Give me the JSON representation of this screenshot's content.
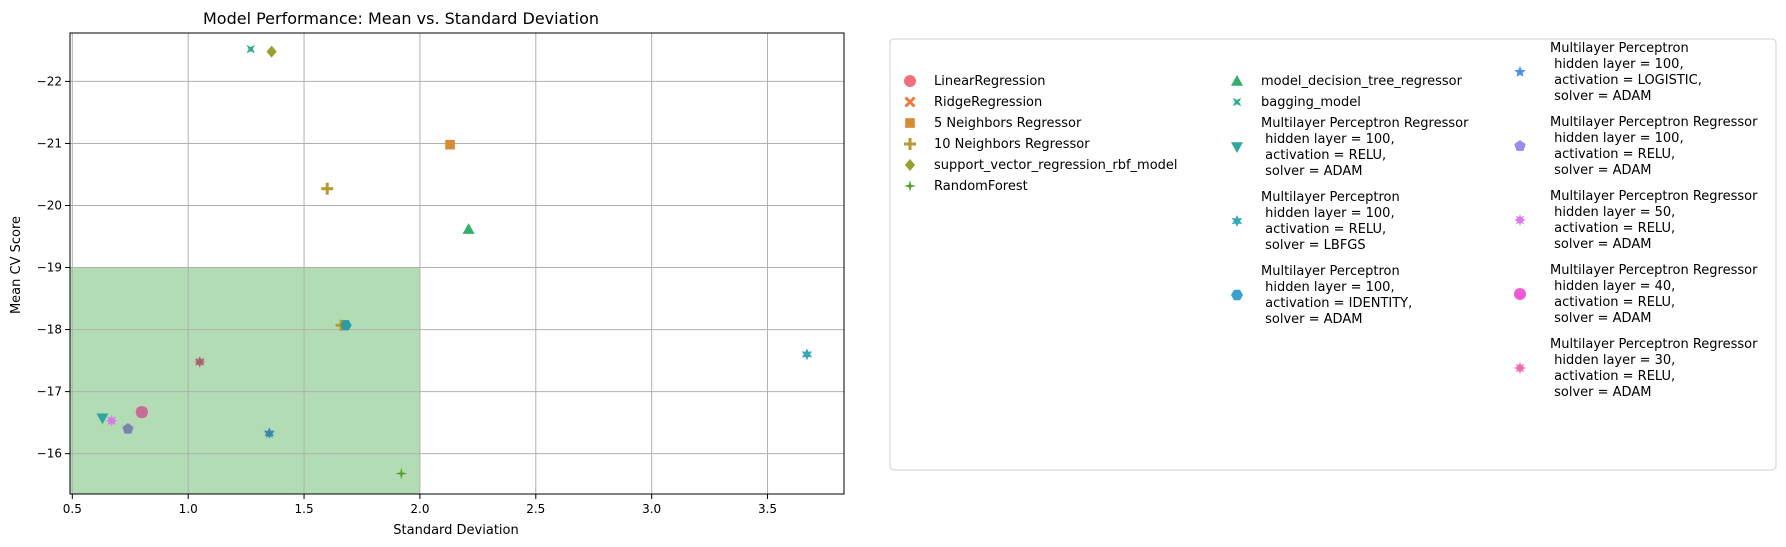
{
  "chart_data": {
    "type": "scatter",
    "title": "Model Performance: Mean vs. Standard Deviation",
    "xlabel": "Standard Deviation",
    "ylabel": "Mean CV Score",
    "xlim": [
      0.49,
      3.83
    ],
    "ylim": [
      -15.35,
      -22.78
    ],
    "y_axis_inverted": true,
    "grid": true,
    "x_ticks": [
      {
        "v": 0.5,
        "label": "0.5"
      },
      {
        "v": 1.0,
        "label": "1.0"
      },
      {
        "v": 1.5,
        "label": "1.5"
      },
      {
        "v": 2.0,
        "label": "2.0"
      },
      {
        "v": 2.5,
        "label": "2.5"
      },
      {
        "v": 3.0,
        "label": "3.0"
      },
      {
        "v": 3.5,
        "label": "3.5"
      }
    ],
    "y_ticks": [
      {
        "v": -16,
        "label": "−16"
      },
      {
        "v": -17,
        "label": "−17"
      },
      {
        "v": -18,
        "label": "−18"
      },
      {
        "v": -19,
        "label": "−19"
      },
      {
        "v": -20,
        "label": "−20"
      },
      {
        "v": -21,
        "label": "−21"
      },
      {
        "v": -22,
        "label": "−22"
      }
    ],
    "highlight_region": {
      "x": [
        0.49,
        2.0
      ],
      "y": [
        -15.35,
        -19.0
      ],
      "color": "#4caf50",
      "opacity": 0.43
    },
    "legend_placement": "outside-right",
    "series": [
      {
        "name": "LinearRegression",
        "marker": "circle",
        "color": "#f0707c",
        "x": 0.8,
        "y": -16.67
      },
      {
        "name": "RidgeRegression",
        "marker": "x",
        "color": "#ef7a3e",
        "x": 0.8,
        "y": -16.67
      },
      {
        "name": "5 Neighbors Regressor",
        "marker": "square",
        "color": "#d58c32",
        "x": 2.13,
        "y": -20.98
      },
      {
        "name": "10 Neighbors Regressor",
        "marker": "plus",
        "color": "#b89830",
        "x": 1.6,
        "y": -20.27
      },
      {
        "name": "support_vector_regression_rbf_model",
        "marker": "diamond",
        "color": "#95a02e",
        "x": 1.36,
        "y": -22.48
      },
      {
        "name": "RandomForest",
        "marker": "star4",
        "color": "#55a331",
        "x": 1.92,
        "y": -15.68
      },
      {
        "name": "model_decision_tree_regressor",
        "marker": "triangle-up",
        "color": "#34ae6a",
        "x": 2.21,
        "y": -19.62
      },
      {
        "name": "bagging_model",
        "marker": "xcross",
        "color": "#33ac8f",
        "x": 1.27,
        "y": -22.52
      },
      {
        "name": "Multilayer Perceptron Regressor\n hidden layer = 100,\n activation = RELU,\n solver = ADAM",
        "marker": "triangle-down",
        "color": "#2fa99e",
        "x": 0.63,
        "y": -16.57
      },
      {
        "name": "Multilayer Perceptron\n hidden layer = 100,\n activation = RELU,\n solver = LBFGS",
        "marker": "star6",
        "color": "#35a9b6",
        "x": 3.67,
        "y": -17.6
      },
      {
        "name": "Multilayer Perceptron\n hidden layer = 100,\n activation = IDENTITY,\n solver = ADAM",
        "marker": "hexagon",
        "color": "#39a1cc",
        "x": 1.68,
        "y": -18.07
      },
      {
        "name": "Multilayer Perceptron\n hidden layer = 100,\n activation = LOGISTIC,\n solver = ADAM",
        "marker": "star5",
        "color": "#4f93e0",
        "x": 1.35,
        "y": -16.33
      },
      {
        "name": "Multilayer Perceptron Regressor\n hidden layer = 100,\n activation = RELU,\n solver = ADAM",
        "marker": "pentagon",
        "color": "#9a8ce8",
        "x": 0.74,
        "y": -16.4
      },
      {
        "name": "Multilayer Perceptron Regressor\n hidden layer = 50,\n activation = RELU,\n solver = ADAM",
        "marker": "star8",
        "color": "#d97ae8",
        "x": 0.67,
        "y": -16.53
      },
      {
        "name": "Multilayer Perceptron Regressor\n hidden layer = 40,\n activation = RELU,\n solver = ADAM",
        "marker": "circle",
        "color": "#ef5ad8",
        "x": 0.8,
        "y": -16.67
      },
      {
        "name": "Multilayer Perceptron Regressor\n hidden layer = 30,\n activation = RELU,\n solver = ADAM",
        "marker": "star8",
        "color": "#f06aa8",
        "x": 1.05,
        "y": -17.48
      }
    ],
    "overlay_markers": [
      {
        "marker": "plus",
        "color": "#b89830",
        "x": 1.66,
        "y": -18.07
      },
      {
        "marker": "star6",
        "color": "#9a6a6a",
        "x": 1.05,
        "y": -17.48
      },
      {
        "marker": "circle",
        "color": "#c07090",
        "x": 0.8,
        "y": -16.67
      },
      {
        "marker": "pentagon",
        "color": "#7787a8",
        "x": 0.74,
        "y": -16.4
      },
      {
        "marker": "star6",
        "color": "#3a88a8",
        "x": 1.35,
        "y": -16.33
      },
      {
        "marker": "hexagon",
        "color": "#2f9a9e",
        "x": 1.68,
        "y": -18.07
      }
    ]
  }
}
